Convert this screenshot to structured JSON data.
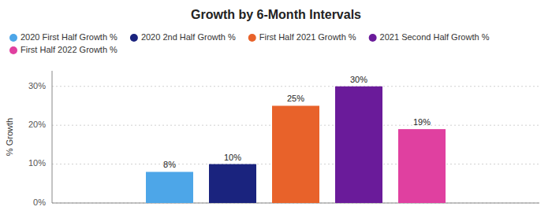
{
  "chart_data": {
    "type": "bar",
    "title": "Growth by 6-Month Intervals",
    "ylabel": "% Growth",
    "categories": [
      null
    ],
    "series": [
      {
        "name": "2020 First Half Growth %",
        "color": "#4DA6E8",
        "values": [
          8
        ],
        "value_labels": [
          "8%"
        ]
      },
      {
        "name": "2020 2nd Half Growth %",
        "color": "#1A237E",
        "values": [
          10
        ],
        "value_labels": [
          "10%"
        ]
      },
      {
        "name": "First Half 2021 Growth %",
        "color": "#E8622A",
        "values": [
          25
        ],
        "value_labels": [
          "25%"
        ]
      },
      {
        "name": "2021 Second Half Growth %",
        "color": "#6A1B9A",
        "values": [
          30
        ],
        "value_labels": [
          "30%"
        ]
      },
      {
        "name": "First Half 2022 Growth %",
        "color": "#E040A0",
        "values": [
          19
        ],
        "value_labels": [
          "19%"
        ]
      }
    ],
    "ylim": [
      0,
      34
    ],
    "yticks": [
      {
        "value": 0,
        "label": "0%"
      },
      {
        "value": 10,
        "label": "10%"
      },
      {
        "value": 20,
        "label": "20%"
      },
      {
        "value": 30,
        "label": "30%"
      }
    ],
    "grid": true,
    "legend": "top",
    "data_labels": true,
    "tick_labels": "y"
  }
}
